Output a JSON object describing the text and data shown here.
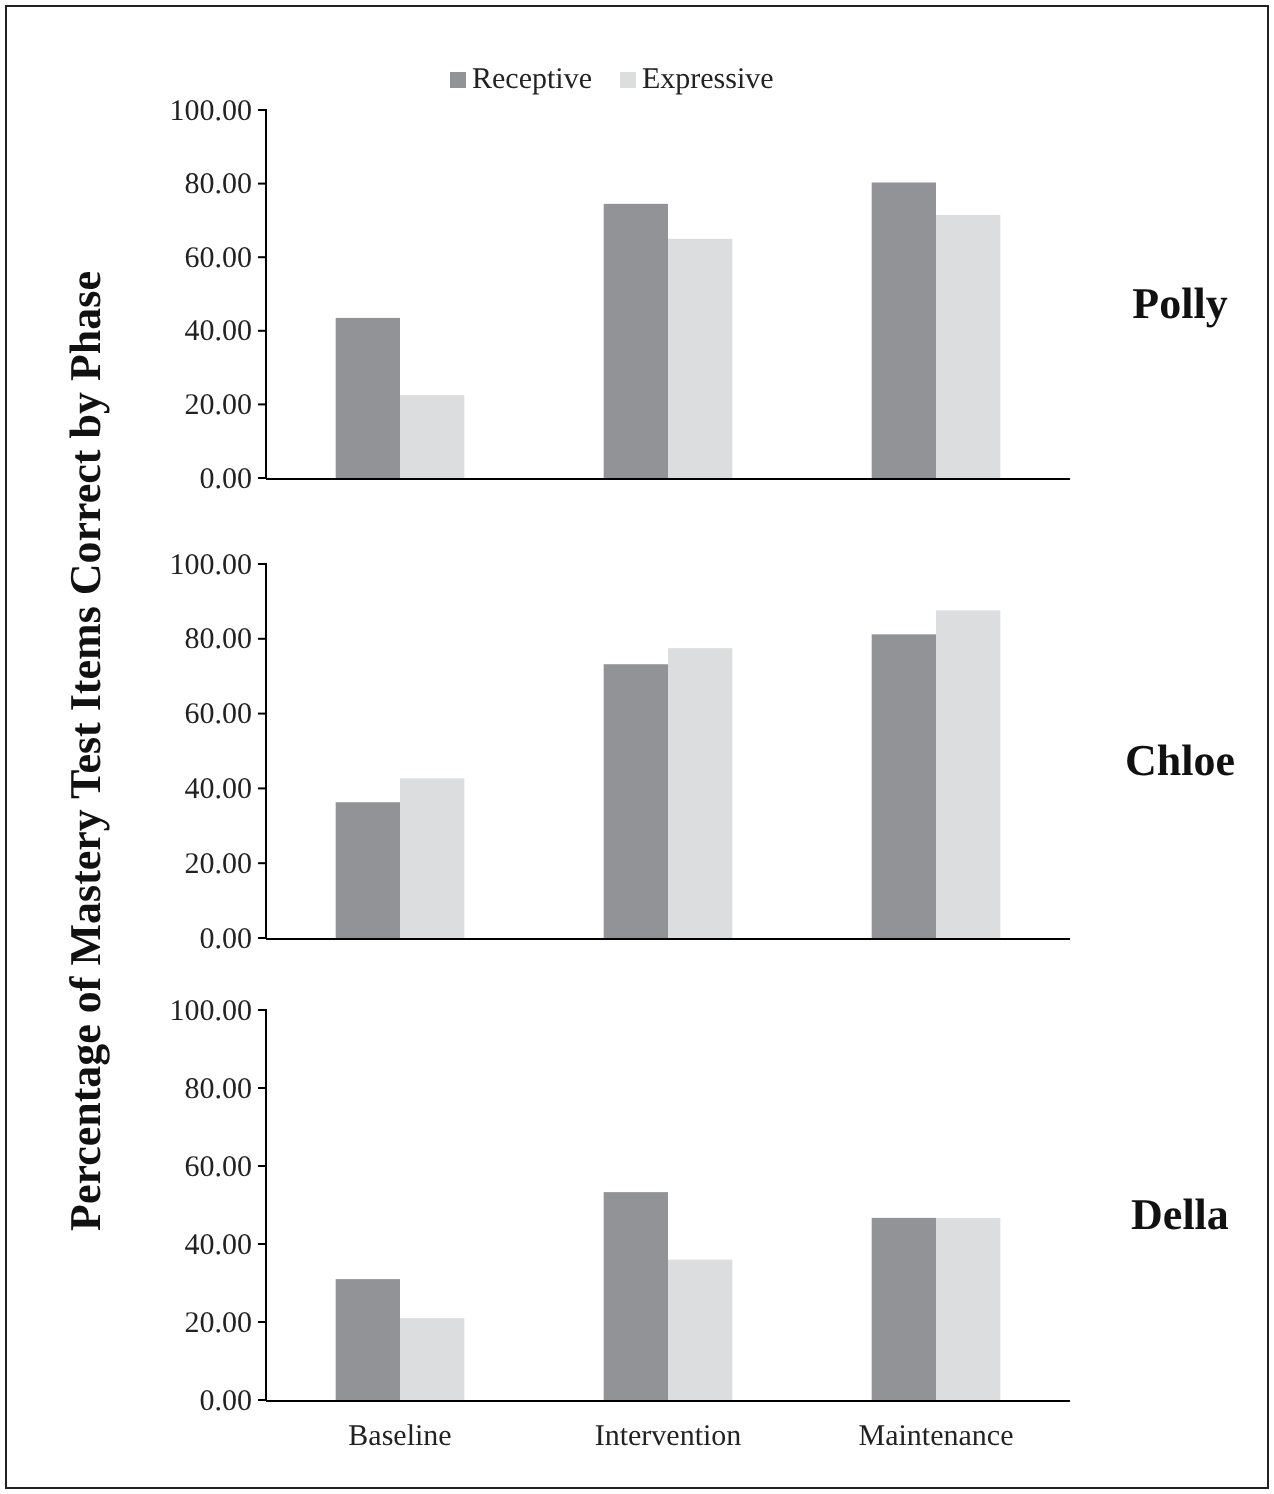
{
  "chart_data": [
    {
      "type": "bar",
      "annotations": [
        "Polly"
      ],
      "series": [
        {
          "name": "Receptive",
          "color": "#929396",
          "values": [
            43.5,
            74.5,
            80.3
          ]
        },
        {
          "name": "Expressive",
          "color": "#dcdddf",
          "values": [
            22.5,
            65,
            71.5
          ]
        }
      ],
      "ylim": [
        0,
        100
      ],
      "yticks": [
        {
          "value": 0,
          "label": "0.00"
        },
        {
          "value": 20,
          "label": "20.00"
        },
        {
          "value": 40,
          "label": "40.00"
        },
        {
          "value": 60,
          "label": "60.00"
        },
        {
          "value": 80,
          "label": "80.00"
        },
        {
          "value": 100,
          "label": "100.00"
        }
      ],
      "legend": "top",
      "tick_labels": "y"
    },
    {
      "type": "bar",
      "annotations": [
        "Chloe"
      ],
      "ylabel": "Percentage of Mastery Test Items Correct by Phase",
      "series": [
        {
          "color": "#929396",
          "values": [
            36.3,
            73.2,
            81.2
          ]
        },
        {
          "color": "#dcdddf",
          "values": [
            42.7,
            77.5,
            87.6
          ]
        }
      ],
      "ylim": [
        0,
        100
      ],
      "yticks": [
        {
          "value": 0,
          "label": "0.00"
        },
        {
          "value": 20,
          "label": "20.00"
        },
        {
          "value": 40,
          "label": "40.00"
        },
        {
          "value": 60,
          "label": "60.00"
        },
        {
          "value": 80,
          "label": "80.00"
        },
        {
          "value": 100,
          "label": "100.00"
        }
      ],
      "tick_labels": "y"
    },
    {
      "type": "bar",
      "annotations": [
        "Della"
      ],
      "categories": [
        "Baseline",
        "Intervention",
        "Maintenance"
      ],
      "series": [
        {
          "color": "#929396",
          "values": [
            31,
            53.3,
            46.7
          ]
        },
        {
          "color": "#dcdddf",
          "values": [
            21,
            36,
            46.7
          ]
        }
      ],
      "ylim": [
        0,
        100
      ],
      "yticks": [
        {
          "value": 0,
          "label": "0.00"
        },
        {
          "value": 20,
          "label": "20.00"
        },
        {
          "value": 40,
          "label": "40.00"
        },
        {
          "value": 60,
          "label": "60.00"
        },
        {
          "value": 80,
          "label": "80.00"
        },
        {
          "value": 100,
          "label": "100.00"
        }
      ]
    }
  ]
}
